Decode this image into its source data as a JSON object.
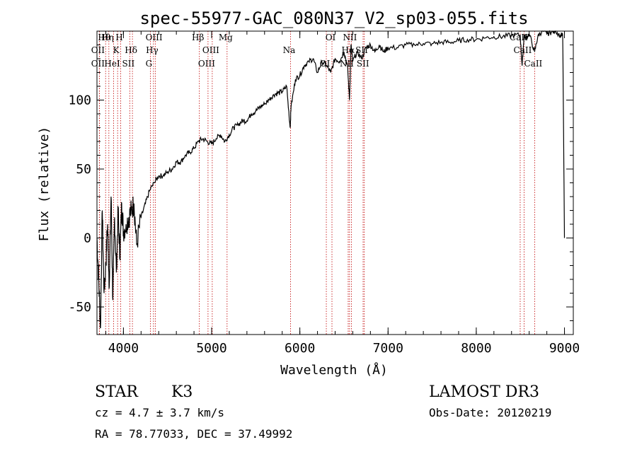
{
  "chart_data": {
    "type": "line",
    "title": "spec-55977-GAC_080N37_V2_sp03-055.fits",
    "xlabel": "Wavelength (Å)",
    "ylabel": "Flux (relative)",
    "xlim": [
      3700,
      9100
    ],
    "ylim": [
      -70,
      150
    ],
    "xticks": [
      4000,
      5000,
      6000,
      7000,
      8000,
      9000
    ],
    "yticks": [
      -50,
      0,
      50,
      100
    ],
    "series": [
      {
        "values_x": [
          3700,
          3720,
          3740,
          3760,
          3780,
          3800,
          3820,
          3840,
          3860,
          3880,
          3900,
          3920,
          3940,
          3960,
          3980,
          4000,
          4030,
          4060,
          4090,
          4120,
          4150,
          4200,
          4250,
          4300,
          4350,
          4400,
          4450,
          4500,
          4550,
          4600,
          4650,
          4700,
          4750,
          4800,
          4850,
          4900,
          4950,
          5000,
          5050,
          5100,
          5150,
          5200,
          5250,
          5300,
          5350,
          5400,
          5450,
          5500,
          5550,
          5600,
          5650,
          5700,
          5750,
          5800,
          5850,
          5890,
          5900,
          5950,
          6000,
          6050,
          6100,
          6150,
          6200,
          6250,
          6300,
          6350,
          6400,
          6450,
          6500,
          6540,
          6563,
          6580,
          6600,
          6650,
          6700,
          6750,
          6800,
          6850,
          6900,
          6950,
          7000,
          7100,
          7200,
          7300,
          7400,
          7500,
          7600,
          7700,
          7800,
          7900,
          8000,
          8100,
          8200,
          8300,
          8400,
          8498,
          8520,
          8542,
          8560,
          8600,
          8662,
          8700,
          8750,
          8800,
          8850,
          8900,
          8950,
          8980,
          9000
        ],
        "values_y": [
          0,
          -30,
          -65,
          20,
          -40,
          -20,
          10,
          -35,
          30,
          -45,
          15,
          -25,
          20,
          -15,
          25,
          5,
          10,
          15,
          20,
          25,
          -5,
          15,
          25,
          35,
          40,
          45,
          45,
          48,
          50,
          55,
          55,
          60,
          62,
          65,
          70,
          72,
          70,
          68,
          72,
          75,
          70,
          75,
          80,
          82,
          85,
          85,
          90,
          92,
          95,
          97,
          100,
          104,
          105,
          106,
          110,
          80,
          95,
          115,
          118,
          125,
          128,
          130,
          120,
          128,
          125,
          120,
          130,
          128,
          135,
          125,
          100,
          140,
          128,
          135,
          130,
          138,
          140,
          135,
          140,
          135,
          138,
          138,
          140,
          140,
          141,
          141,
          142,
          142,
          143,
          144,
          144,
          145,
          146,
          146,
          147,
          147,
          125,
          147,
          145,
          148,
          135,
          147,
          150,
          148,
          149,
          150,
          147,
          147,
          0
        ]
      }
    ],
    "lines": [
      {
        "name": "Hθ",
        "wavelength": 3798
      },
      {
        "name": "OII",
        "wavelength": 3727
      },
      {
        "name": "OII",
        "wavelength": 3727
      },
      {
        "name": "Hη",
        "wavelength": 3835
      },
      {
        "name": "K",
        "wavelength": 3934
      },
      {
        "name": "HeI",
        "wavelength": 3889
      },
      {
        "name": "H",
        "wavelength": 3969
      },
      {
        "name": "Hδ",
        "wavelength": 4102
      },
      {
        "name": "SII",
        "wavelength": 4072
      },
      {
        "name": "OIII",
        "wavelength": 4363
      },
      {
        "name": "Hγ",
        "wavelength": 4341
      },
      {
        "name": "G",
        "wavelength": 4305
      },
      {
        "name": "Hβ",
        "wavelength": 4861
      },
      {
        "name": "OIII",
        "wavelength": 5007
      },
      {
        "name": "OIII",
        "wavelength": 4959
      },
      {
        "name": "Mg",
        "wavelength": 5175
      },
      {
        "name": "Na",
        "wavelength": 5894
      },
      {
        "name": "OI",
        "wavelength": 6300
      },
      {
        "name": "OI",
        "wavelength": 6364
      },
      {
        "name": "Hα",
        "wavelength": 6563
      },
      {
        "name": "NII",
        "wavelength": 6548
      },
      {
        "name": "NII",
        "wavelength": 6584
      },
      {
        "name": "SII",
        "wavelength": 6717
      },
      {
        "name": "SII",
        "wavelength": 6731
      },
      {
        "name": "CaII",
        "wavelength": 8498
      },
      {
        "name": "CaII",
        "wavelength": 8542
      },
      {
        "name": "CaII",
        "wavelength": 8662
      }
    ],
    "line_color": "#c00000"
  },
  "info": {
    "class": "STAR",
    "subclass": "K3",
    "survey": "LAMOST DR3",
    "cz": "cz = 4.7 ± 3.7 km/s",
    "obsdate": "Obs-Date: 20120219",
    "radec": "RA =  78.77033, DEC =  37.49992"
  }
}
